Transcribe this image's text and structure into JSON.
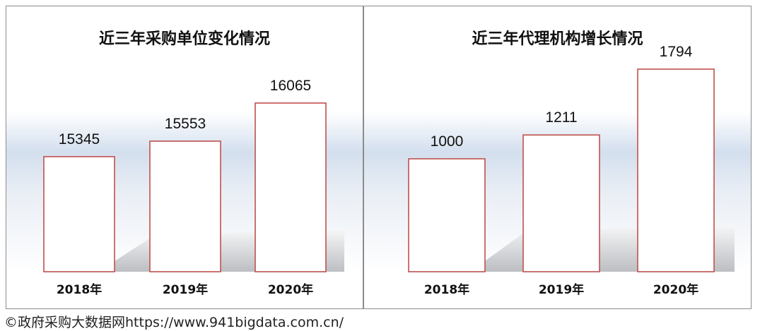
{
  "chart_data": [
    {
      "type": "bar",
      "title": "近三年采购单位变化情况",
      "categories": [
        "2018年",
        "2019年",
        "2020年"
      ],
      "values": [
        15345,
        15553,
        16065
      ],
      "value_labels": [
        "15345",
        "15553",
        "16065"
      ],
      "ylim": [
        13800,
        16700
      ],
      "grid": false,
      "legend": "none",
      "bar_fill": "#ffffff",
      "bar_stroke": "#c0504d"
    },
    {
      "type": "bar",
      "title": "近三年代理机构增长情况",
      "categories": [
        "2018年",
        "2019年",
        "2020年"
      ],
      "values": [
        1000,
        1211,
        1794
      ],
      "value_labels": [
        "1000",
        "1211",
        "1794"
      ],
      "ylim": [
        0,
        2250
      ],
      "grid": false,
      "legend": "none",
      "bar_fill": "#ffffff",
      "bar_stroke": "#c0504d"
    }
  ],
  "watermark": "©政府采购大数据网https://www.941bigdata.com.cn/"
}
